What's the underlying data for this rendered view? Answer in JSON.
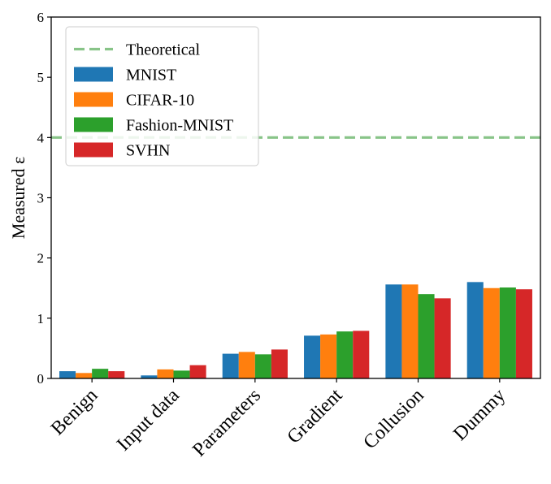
{
  "chart_data": {
    "type": "bar",
    "categories": [
      "Benign",
      "Input data",
      "Parameters",
      "Gradient",
      "Collusion",
      "Dummy"
    ],
    "series": [
      {
        "name": "MNIST",
        "color": "#1f77b4",
        "values": [
          0.12,
          0.05,
          0.41,
          0.71,
          1.56,
          1.6
        ]
      },
      {
        "name": "CIFAR-10",
        "color": "#ff7f0e",
        "values": [
          0.09,
          0.15,
          0.44,
          0.73,
          1.56,
          1.5
        ]
      },
      {
        "name": "Fashion-MNIST",
        "color": "#2ca02c",
        "values": [
          0.16,
          0.13,
          0.4,
          0.78,
          1.4,
          1.51
        ]
      },
      {
        "name": "SVHN",
        "color": "#d62728",
        "values": [
          0.12,
          0.22,
          0.48,
          0.79,
          1.33,
          1.48
        ]
      }
    ],
    "reference_line": {
      "name": "Theoretical",
      "value": 4,
      "color": "#88c488",
      "style": "dashed"
    },
    "title": "",
    "xlabel": "",
    "ylabel": "Measured ε",
    "ylim": [
      0,
      6
    ],
    "yticks": [
      "0",
      "1",
      "2",
      "3",
      "4",
      "5",
      "6"
    ],
    "grid": false,
    "legend_position": "top-left"
  }
}
